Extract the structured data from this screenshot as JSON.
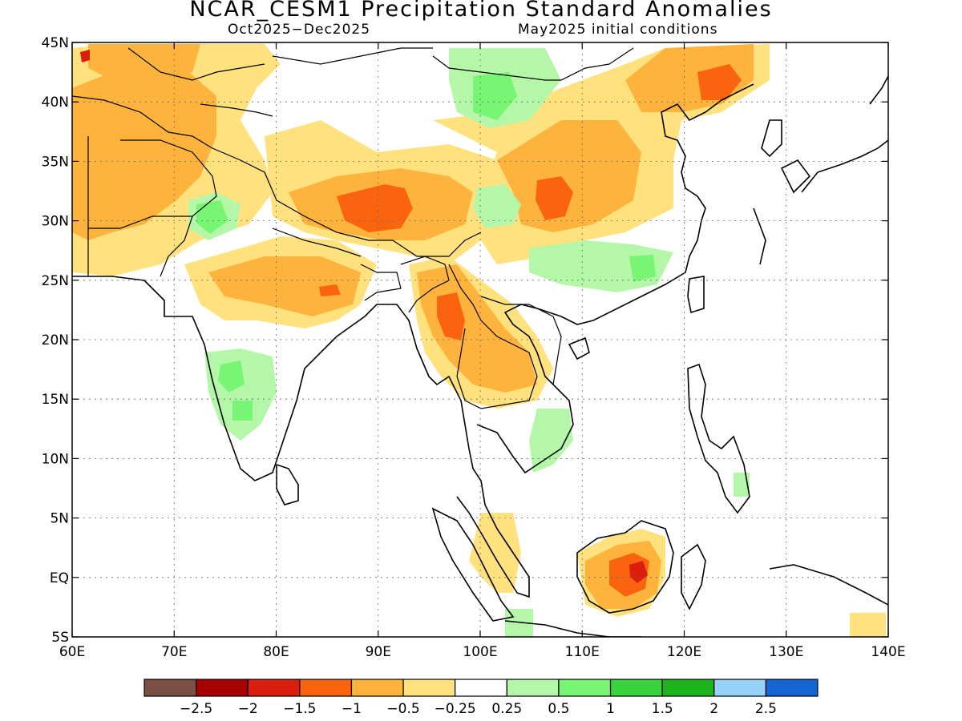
{
  "title": "NCAR_CESM1 Precipitation Standard Anomalies",
  "period": "Oct2025−Dec2025",
  "init": "May2025 initial conditions",
  "lat_labels": [
    "45N",
    "40N",
    "35N",
    "30N",
    "25N",
    "20N",
    "15N",
    "10N",
    "5N",
    "EQ",
    "5S"
  ],
  "lon_labels": [
    "60E",
    "70E",
    "80E",
    "90E",
    "100E",
    "110E",
    "120E",
    "130E",
    "140E"
  ],
  "colorbar": {
    "colors": [
      "#7a4f45",
      "#a80000",
      "#dc1e0f",
      "#fa640f",
      "#fdb33c",
      "#ffe17e",
      "#ffffff",
      "#b4f7a8",
      "#78f573",
      "#37d23c",
      "#1eb41e",
      "#96d2fa",
      "#1464d2"
    ],
    "labels": [
      "−2.5",
      "−2",
      "−1.5",
      "−1",
      "−0.5",
      "−0.25",
      "0.25",
      "0.5",
      "1",
      "1.5",
      "2",
      "2.5"
    ]
  },
  "legend": {
    "lon_range": [
      60,
      140
    ],
    "lat_range": [
      -5,
      45
    ]
  }
}
